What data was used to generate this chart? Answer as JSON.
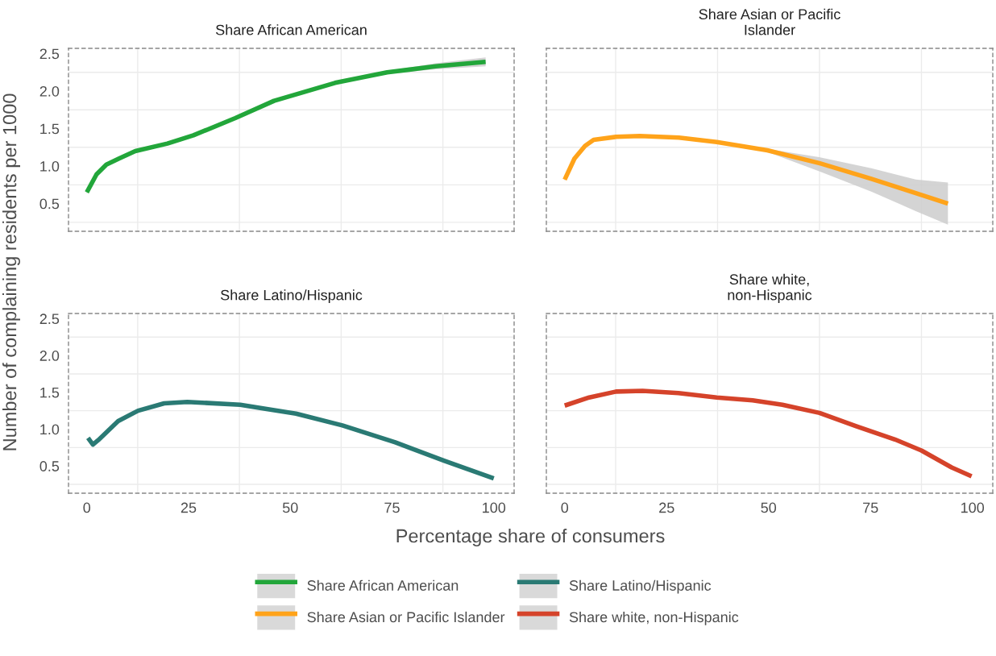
{
  "chart_data": [
    {
      "type": "line",
      "title": "Share African American",
      "ylabel": "Number of complaining residents per 1000",
      "xlabel": "Percentage share of consumers",
      "legend": "bottom",
      "grid": true,
      "tick_labels": "y",
      "line_style": "solid",
      "xlim": [
        -4.5,
        105
      ],
      "ylim": [
        0.13,
        2.57
      ],
      "xticks": [
        {
          "value": 12.5,
          "label": null
        },
        {
          "value": 37.5,
          "label": null
        },
        {
          "value": 62.5,
          "label": null
        },
        {
          "value": 87.5,
          "label": null
        }
      ],
      "yticks": [
        0.5,
        {
          "value": 1,
          "label": "1.0"
        },
        1.5,
        {
          "value": 2,
          "label": "2.0"
        },
        2.5,
        {
          "value": 0.25,
          "label": null
        },
        {
          "value": 0.75,
          "label": null
        },
        {
          "value": 1.25,
          "label": null
        },
        {
          "value": 1.75,
          "label": null
        },
        {
          "value": 2.25,
          "label": null
        }
      ],
      "series": [
        {
          "name": "Share African American",
          "color": "#22a63a",
          "x": [
            0,
            2.4,
            4.8,
            7.9,
            11.9,
            19.8,
            26.2,
            36.5,
            46,
            61,
            73.8,
            85.7,
            98
          ],
          "values": [
            0.65,
            0.89,
            1.02,
            1.1,
            1.2,
            1.3,
            1.41,
            1.64,
            1.87,
            2.11,
            2.25,
            2.33,
            2.39
          ],
          "lower": [
            0.63,
            0.87,
            1.0,
            1.08,
            1.18,
            1.28,
            1.39,
            1.62,
            1.85,
            2.09,
            2.23,
            2.29,
            2.33
          ],
          "upper": [
            0.67,
            0.91,
            1.04,
            1.12,
            1.22,
            1.32,
            1.43,
            1.66,
            1.89,
            2.13,
            2.27,
            2.37,
            2.45
          ]
        }
      ]
    },
    {
      "type": "line",
      "title": "Share Asian or Pacific\nIslander",
      "grid": true,
      "tick_labels": false,
      "line_style": "solid",
      "xlim": [
        -4.5,
        105
      ],
      "ylim": [
        0.13,
        2.57
      ],
      "xticks": [
        {
          "value": 12.5,
          "label": null
        },
        {
          "value": 37.5,
          "label": null
        },
        {
          "value": 62.5,
          "label": null
        },
        {
          "value": 87.5,
          "label": null
        }
      ],
      "yticks": [
        {
          "value": 0.25,
          "label": null
        },
        {
          "value": 0.75,
          "label": null
        },
        {
          "value": 1.25,
          "label": null
        },
        {
          "value": 1.75,
          "label": null
        },
        {
          "value": 2.25,
          "label": null
        }
      ],
      "series": [
        {
          "name": "Share Asian or Pacific Islander",
          "color": "#ffa31a",
          "x": [
            0,
            2.4,
            5,
            7.1,
            12.6,
            18.4,
            28,
            37.3,
            49.7,
            62.4,
            75.2,
            86.1,
            94
          ],
          "values": [
            0.82,
            1.1,
            1.27,
            1.35,
            1.39,
            1.4,
            1.38,
            1.32,
            1.21,
            1.04,
            0.83,
            0.64,
            0.5
          ],
          "lower": [
            0.8,
            1.08,
            1.25,
            1.33,
            1.37,
            1.38,
            1.36,
            1.3,
            1.19,
            0.93,
            0.66,
            0.4,
            0.22
          ],
          "upper": [
            0.84,
            1.12,
            1.29,
            1.37,
            1.41,
            1.42,
            1.4,
            1.34,
            1.23,
            1.12,
            0.97,
            0.82,
            0.78
          ]
        }
      ]
    },
    {
      "type": "line",
      "title": "Share Latino/Hispanic",
      "grid": true,
      "line_style": "solid",
      "xlim": [
        -4.5,
        105
      ],
      "ylim": [
        0.13,
        2.57
      ],
      "xticks": [
        0,
        25,
        50,
        75,
        100,
        {
          "value": 12.5,
          "label": null
        },
        {
          "value": 37.5,
          "label": null
        },
        {
          "value": 62.5,
          "label": null
        },
        {
          "value": 87.5,
          "label": null
        }
      ],
      "yticks": [
        0.5,
        {
          "value": 1,
          "label": "1.0"
        },
        1.5,
        {
          "value": 2,
          "label": "2.0"
        },
        2.5,
        {
          "value": 0.25,
          "label": null
        },
        {
          "value": 0.75,
          "label": null
        },
        {
          "value": 1.25,
          "label": null
        },
        {
          "value": 1.75,
          "label": null
        },
        {
          "value": 2.25,
          "label": null
        }
      ],
      "series": [
        {
          "name": "Share Latino/Hispanic",
          "color": "#2a7a74",
          "x": [
            0.3,
            1.5,
            2.8,
            7.7,
            12.6,
            19,
            24.7,
            37.7,
            51.4,
            62.8,
            75.8,
            87.9,
            100
          ],
          "values": [
            0.88,
            0.79,
            0.85,
            1.11,
            1.25,
            1.35,
            1.37,
            1.33,
            1.21,
            1.05,
            0.82,
            0.57,
            0.33
          ]
        }
      ]
    },
    {
      "type": "line",
      "title": "Share white,\nnon-Hispanic",
      "grid": true,
      "tick_labels": "x",
      "line_style": "solid",
      "xlim": [
        -4.5,
        105
      ],
      "ylim": [
        0.13,
        2.57
      ],
      "xticks": [
        0,
        25,
        50,
        75,
        100,
        {
          "value": 12.5,
          "label": null
        },
        {
          "value": 37.5,
          "label": null
        },
        {
          "value": 62.5,
          "label": null
        },
        {
          "value": 87.5,
          "label": null
        }
      ],
      "yticks": [
        {
          "value": 0.25,
          "label": null
        },
        {
          "value": 0.75,
          "label": null
        },
        {
          "value": 1.25,
          "label": null
        },
        {
          "value": 1.75,
          "label": null
        },
        {
          "value": 2.25,
          "label": null
        }
      ],
      "series": [
        {
          "name": "Share white, non-Hispanic",
          "color": "#d5432a",
          "x": [
            0,
            6,
            12.6,
            19.1,
            27.9,
            37.3,
            46.1,
            53.4,
            62.5,
            71.5,
            81,
            87.5,
            94.9,
            99.8
          ],
          "values": [
            1.32,
            1.43,
            1.51,
            1.52,
            1.49,
            1.43,
            1.39,
            1.33,
            1.22,
            1.04,
            0.86,
            0.71,
            0.48,
            0.36
          ]
        }
      ]
    }
  ]
}
